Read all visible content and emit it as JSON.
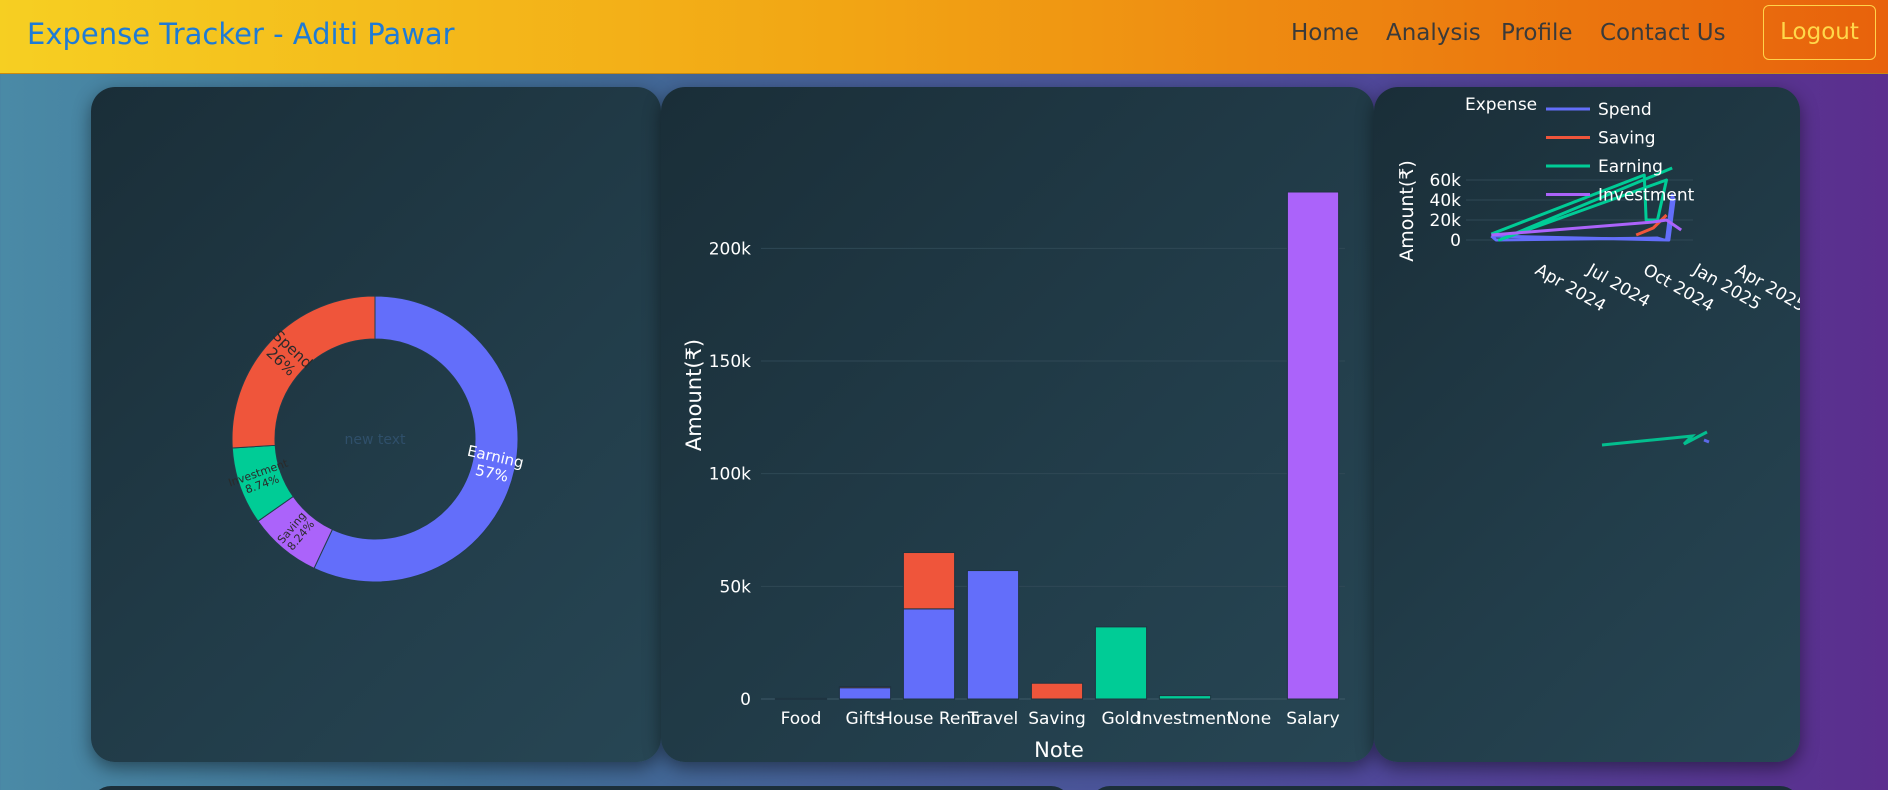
{
  "navbar": {
    "brand": "Expense Tracker - Aditi Pawar",
    "links": [
      "Home",
      "Analysis",
      "Profile",
      "Contact Us"
    ],
    "logout_label": "Logout"
  },
  "colors": {
    "spend": "#636efa",
    "saving": "#ef553b",
    "earning": "#00cc96",
    "investment": "#ab63fa"
  },
  "donut": {
    "center_text": "new text",
    "slices": [
      {
        "label": "Earning",
        "pct_text": "57%",
        "value": 57,
        "color": "#636efa"
      },
      {
        "label": "Saving",
        "pct_text": "8.24%",
        "value": 8.24,
        "color": "#ab63fa"
      },
      {
        "label": "Investment",
        "pct_text": "8.74%",
        "value": 8.74,
        "color": "#00cc96"
      },
      {
        "label": "Spend",
        "pct_text": "26%",
        "value": 26,
        "color": "#ef553b"
      }
    ]
  },
  "chart_data": [
    {
      "type": "pie",
      "labels": [
        "Earning",
        "Saving",
        "Investment",
        "Spend"
      ],
      "values": [
        57,
        8.24,
        8.74,
        26
      ],
      "hole": true,
      "title": "new text"
    },
    {
      "type": "bar",
      "xlabel": "Note",
      "ylabel": "Amount(₹)",
      "ylim": [
        0,
        225000
      ],
      "yticks": [
        "0",
        "50k",
        "100k",
        "150k",
        "200k"
      ],
      "categories": [
        "Food",
        "Gifts",
        "House Rent",
        "Travel",
        "Saving",
        "Gold",
        "Investment",
        "None",
        "Salary"
      ],
      "series": [
        {
          "name": "Spend",
          "color": "#636efa",
          "values": [
            300,
            5000,
            40000,
            57000,
            0,
            0,
            0,
            0,
            0
          ]
        },
        {
          "name": "Saving",
          "color": "#ef553b",
          "values": [
            0,
            500,
            25000,
            0,
            7000,
            0,
            0,
            0,
            0
          ]
        },
        {
          "name": "Earning",
          "color": "#00cc96",
          "values": [
            0,
            0,
            0,
            0,
            0,
            32000,
            1500,
            0,
            0
          ]
        },
        {
          "name": "Investment",
          "color": "#ab63fa",
          "values": [
            0,
            0,
            0,
            0,
            0,
            0,
            0,
            0,
            225000
          ]
        }
      ]
    },
    {
      "type": "line",
      "ylabel": "Amount(₹)",
      "legend_title": "Expense",
      "legend_position": "top",
      "yticks": [
        "0",
        "20k",
        "40k",
        "60k"
      ],
      "xticks": [
        "Apr 2024",
        "Jul 2024",
        "Oct 2024",
        "Jan 2025",
        "Apr 2025"
      ],
      "ylim": [
        0,
        70000
      ],
      "series": [
        {
          "name": "Spend",
          "color": "#636efa",
          "x": [
            "2024-03-15",
            "2024-03-25",
            "2025-03-01",
            "2025-03-15",
            "2025-03-20",
            "2025-04-01",
            "2025-04-05",
            "2025-03-25",
            "2024-03-15"
          ],
          "y": [
            4000,
            0,
            2000,
            0,
            0,
            45000,
            40000,
            0,
            4000
          ]
        },
        {
          "name": "Saving",
          "color": "#ef553b",
          "x": [
            "2025-01-15",
            "2025-02-20",
            "2025-03-20"
          ],
          "y": [
            5000,
            12000,
            25000
          ]
        },
        {
          "name": "Earning",
          "color": "#00cc96",
          "x": [
            "2024-03-15",
            "2025-02-01",
            "2025-02-05",
            "2025-03-01",
            "2025-03-20",
            "2024-04-01",
            "2025-04-01"
          ],
          "y": [
            6000,
            65000,
            20000,
            20000,
            60000,
            0,
            72000
          ]
        },
        {
          "name": "Investment",
          "color": "#ab63fa",
          "x": [
            "2024-03-15",
            "2025-02-20",
            "2025-03-20",
            "2025-04-20"
          ],
          "y": [
            5000,
            18000,
            20000,
            10000
          ]
        }
      ]
    }
  ]
}
